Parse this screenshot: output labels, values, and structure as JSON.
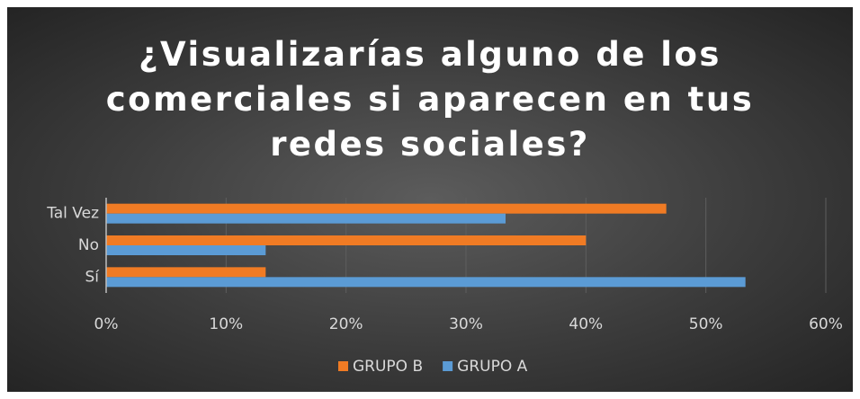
{
  "chart_data": {
    "type": "hbar",
    "title": "¿Visualizarías alguno de los comerciales si aparecen en tus redes sociales?",
    "categories": [
      "Sí",
      "No",
      "Tal Vez"
    ],
    "series": [
      {
        "name": "GRUPO B",
        "color": "#f07b24",
        "values": [
          13.3,
          40,
          46.7
        ]
      },
      {
        "name": "GRUPO A",
        "color": "#5b9bd5",
        "values": [
          53.3,
          13.3,
          33.3
        ]
      }
    ],
    "xlim": [
      0,
      60
    ],
    "xticks": [
      {
        "value": 0,
        "label": "0%"
      },
      {
        "value": 10,
        "label": "10%"
      },
      {
        "value": 20,
        "label": "20%"
      },
      {
        "value": 30,
        "label": "30%"
      },
      {
        "value": 40,
        "label": "40%"
      },
      {
        "value": 50,
        "label": "50%"
      },
      {
        "value": 60,
        "label": "60%"
      }
    ],
    "grid": true,
    "legend": "bottom"
  }
}
